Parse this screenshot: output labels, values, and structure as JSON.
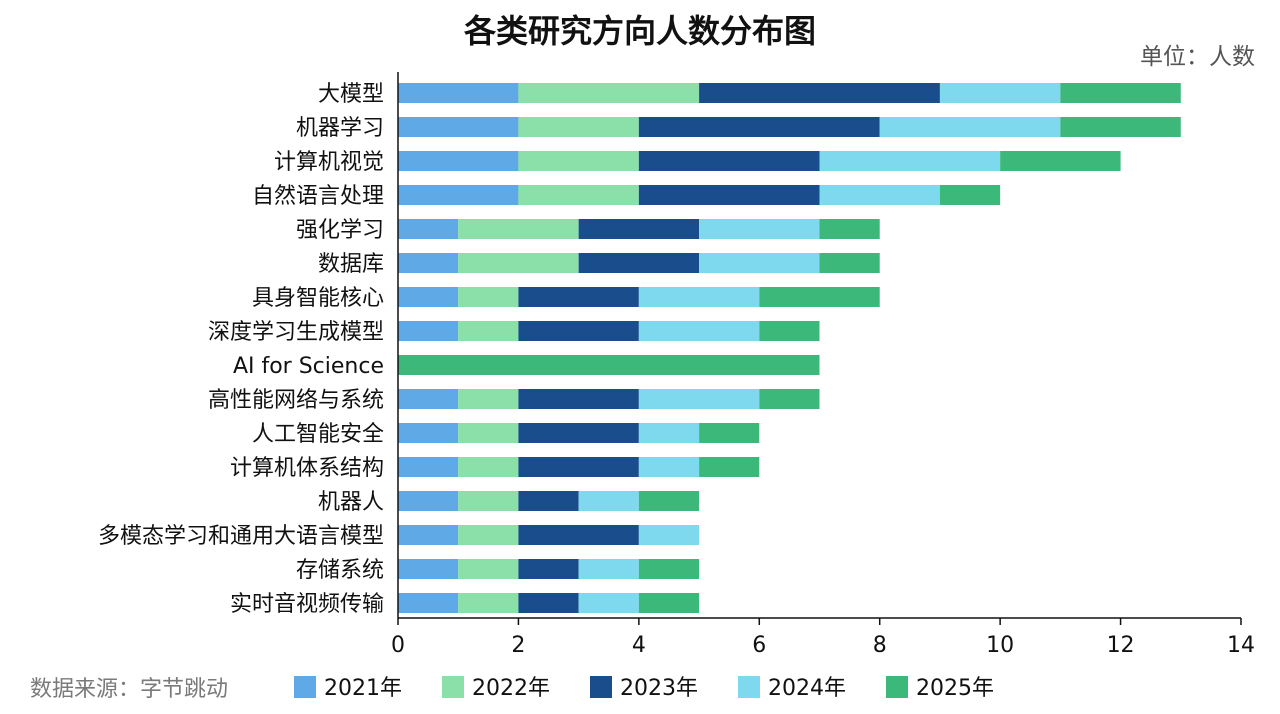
{
  "chart_data": {
    "type": "bar",
    "orientation": "horizontal",
    "stacked": true,
    "title": "各类研究方向人数分布图",
    "unit_label": "单位：人数",
    "source_label": "数据来源：字节跳动",
    "xlabel": "",
    "ylabel": "",
    "xlim": [
      0,
      14
    ],
    "x_ticks": [
      0,
      2,
      4,
      6,
      8,
      10,
      12,
      14
    ],
    "grid": false,
    "legend_position": "bottom",
    "categories": [
      "大模型",
      "机器学习",
      "计算机视觉",
      "自然语言处理",
      "强化学习",
      "数据库",
      "具身智能核心",
      "深度学习生成模型",
      "AI for Science",
      "高性能网络与系统",
      "人工智能安全",
      "计算机体系结构",
      "机器人",
      "多模态学习和通用大语言模型",
      "存储系统",
      "实时音视频传输"
    ],
    "series": [
      {
        "name": "2021年",
        "color": "#5ea9e6",
        "values": [
          2,
          2,
          2,
          2,
          1,
          1,
          1,
          1,
          0,
          1,
          1,
          1,
          1,
          1,
          1,
          1
        ]
      },
      {
        "name": "2022年",
        "color": "#8be0aa",
        "values": [
          3,
          2,
          2,
          2,
          2,
          2,
          1,
          1,
          0,
          1,
          1,
          1,
          1,
          1,
          1,
          1
        ]
      },
      {
        "name": "2023年",
        "color": "#1a4d8c",
        "values": [
          4,
          4,
          3,
          3,
          2,
          2,
          2,
          2,
          0,
          2,
          2,
          2,
          1,
          2,
          1,
          1
        ]
      },
      {
        "name": "2024年",
        "color": "#7fd9ee",
        "values": [
          2,
          3,
          3,
          2,
          2,
          2,
          2,
          2,
          0,
          2,
          1,
          1,
          1,
          1,
          1,
          1
        ]
      },
      {
        "name": "2025年",
        "color": "#3cb97a",
        "values": [
          2,
          2,
          2,
          1,
          1,
          1,
          2,
          1,
          7,
          1,
          1,
          1,
          1,
          0,
          1,
          1
        ]
      }
    ]
  }
}
